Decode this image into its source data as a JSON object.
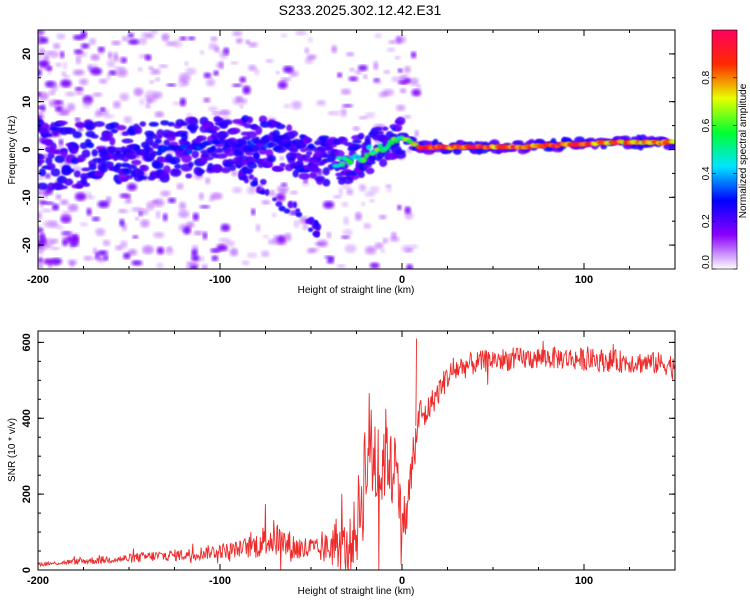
{
  "title": "S233.2025.302.12.42.E31",
  "chart_data": [
    {
      "type": "heatmap",
      "name": "spectrogram",
      "xlabel": "Height of straight line (km)",
      "ylabel": "Frequency (Hz)",
      "xlim": [
        -200,
        150
      ],
      "ylim": [
        -25,
        25
      ],
      "xticks": [
        -200,
        -100,
        0,
        100
      ],
      "xtick_labels": [
        "-200",
        "-100",
        "0",
        "100"
      ],
      "yticks": [
        -20,
        -10,
        0,
        10,
        20
      ],
      "ytick_labels": [
        "-20",
        "-10",
        "0",
        "10",
        "20"
      ],
      "ridge": {
        "x": [
          -165,
          -150,
          -130,
          -110,
          -95,
          -80,
          -70,
          -60,
          -50,
          -45,
          -40,
          -35,
          -30,
          -25,
          -20,
          -15,
          -10,
          -5,
          0,
          10,
          30,
          60,
          90,
          120,
          150
        ],
        "y": [
          -1.0,
          -0.5,
          0.0,
          0.5,
          1.0,
          1.5,
          1.0,
          0.0,
          -1.5,
          -2.0,
          -2.5,
          -2.5,
          -2.0,
          -1.5,
          -1.0,
          0.0,
          1.0,
          2.0,
          2.5,
          0.5,
          0.5,
          0.5,
          1.0,
          1.5,
          1.5
        ],
        "amplitude": [
          0.25,
          0.25,
          0.3,
          0.3,
          0.25,
          0.3,
          0.3,
          0.25,
          0.2,
          0.2,
          0.3,
          0.45,
          0.55,
          0.5,
          0.6,
          0.6,
          0.65,
          0.6,
          0.55,
          0.9,
          0.95,
          0.95,
          0.9,
          0.85,
          0.8
        ]
      },
      "colorbar": {
        "label": "Normalized spectral amplitude",
        "range": [
          0,
          1
        ],
        "ticks": [
          0.0,
          0.2,
          0.4,
          0.6,
          0.8
        ],
        "tick_labels": [
          "0.0",
          "0.2",
          "0.4",
          "0.6",
          "0.8"
        ],
        "colors": [
          "#ffffff",
          "#8a00ff",
          "#0000ff",
          "#00e5ff",
          "#00ff30",
          "#e8ff00",
          "#ff2a00",
          "#ff0060"
        ]
      }
    },
    {
      "type": "line",
      "name": "snr",
      "xlabel": "Height of straight line (km)",
      "ylabel": "SNR (10 * v/v)",
      "xlim": [
        -200,
        150
      ],
      "ylim": [
        0,
        630
      ],
      "xticks": [
        -200,
        -100,
        0,
        100
      ],
      "xtick_labels": [
        "-200",
        "-100",
        "0",
        "100"
      ],
      "yticks": [
        0,
        200,
        400,
        600
      ],
      "ytick_labels": [
        "0",
        "200",
        "400",
        "600"
      ],
      "color": "#ee2a2a",
      "x": [
        -200,
        -190,
        -180,
        -170,
        -160,
        -150,
        -140,
        -130,
        -120,
        -110,
        -100,
        -90,
        -80,
        -75,
        -70,
        -65,
        -60,
        -55,
        -50,
        -45,
        -40,
        -35,
        -30,
        -25,
        -22,
        -20,
        -18,
        -15,
        -12,
        -10,
        -8,
        -6,
        -5,
        -4,
        -3,
        -2,
        0,
        2,
        4,
        6,
        8,
        10,
        12,
        15,
        20,
        25,
        30,
        40,
        50,
        60,
        80,
        100,
        120,
        140,
        150
      ],
      "y": [
        15,
        18,
        22,
        25,
        28,
        30,
        35,
        38,
        40,
        45,
        50,
        55,
        65,
        80,
        85,
        70,
        60,
        55,
        55,
        50,
        60,
        80,
        50,
        110,
        200,
        280,
        330,
        300,
        250,
        300,
        320,
        260,
        250,
        330,
        380,
        160,
        150,
        130,
        200,
        300,
        360,
        420,
        400,
        430,
        470,
        510,
        530,
        545,
        555,
        555,
        560,
        555,
        550,
        545,
        540
      ],
      "noise": [
        5,
        5,
        8,
        10,
        10,
        12,
        14,
        15,
        16,
        18,
        20,
        22,
        35,
        45,
        50,
        45,
        40,
        35,
        35,
        30,
        50,
        80,
        60,
        100,
        150,
        150,
        150,
        150,
        150,
        130,
        110,
        100,
        130,
        120,
        100,
        80,
        80,
        60,
        80,
        60,
        50,
        40,
        40,
        35,
        35,
        35,
        35,
        30,
        30,
        30,
        30,
        30,
        30,
        30,
        30
      ]
    }
  ]
}
